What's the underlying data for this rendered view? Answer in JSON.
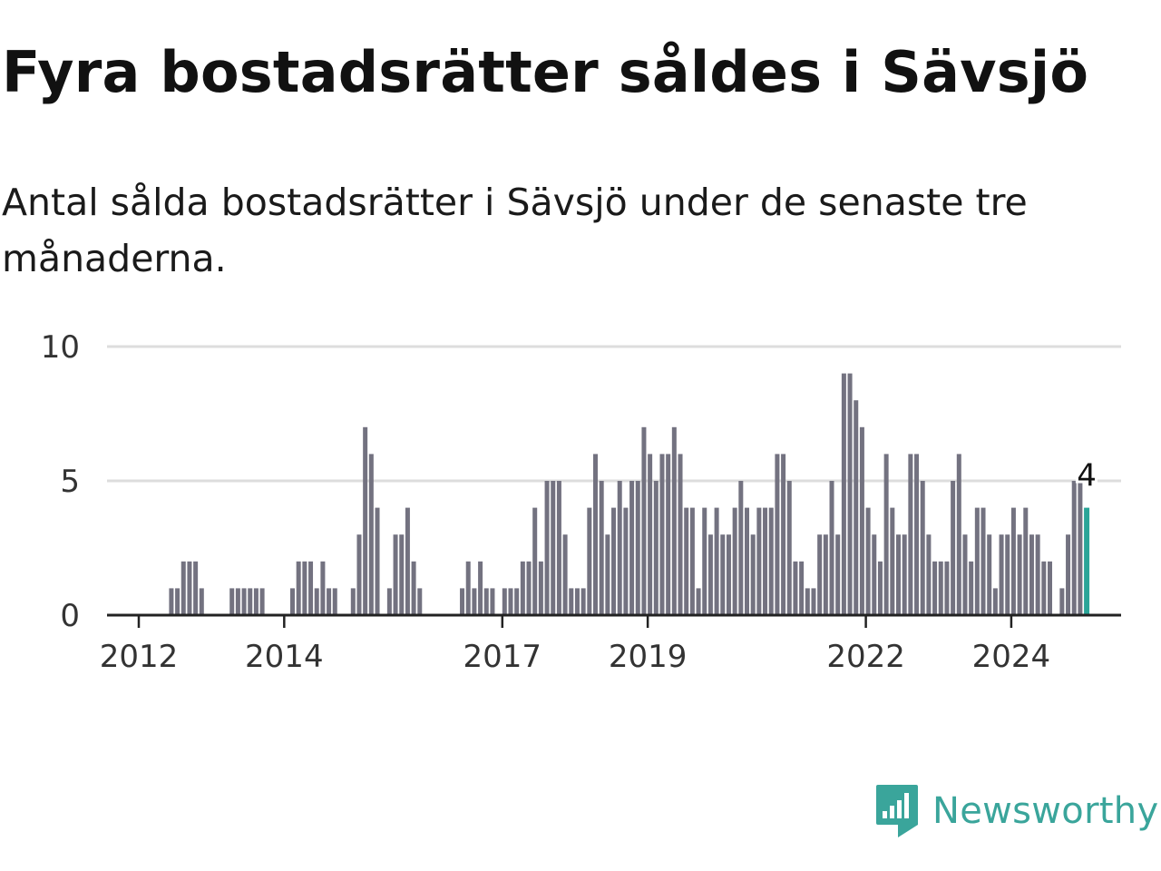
{
  "title": "Fyra bostadsrätter såldes i Sävsjö",
  "subtitle": "Antal sålda bostadsrätter i Sävsjö under de senaste tre månaderna.",
  "brand": {
    "name": "Newsworthy",
    "icon": "newsworthy-logo-icon",
    "color": "#3aa59b"
  },
  "chart_data": {
    "type": "bar",
    "start": "2012-06",
    "interval": "month",
    "values": [
      1,
      1,
      2,
      2,
      2,
      1,
      0,
      0,
      0,
      0,
      1,
      1,
      1,
      1,
      1,
      1,
      0,
      0,
      0,
      0,
      1,
      2,
      2,
      2,
      1,
      2,
      1,
      1,
      0,
      0,
      1,
      3,
      7,
      6,
      4,
      0,
      1,
      3,
      3,
      4,
      2,
      1,
      0,
      0,
      0,
      0,
      0,
      0,
      1,
      2,
      1,
      2,
      1,
      1,
      0,
      1,
      1,
      1,
      2,
      2,
      4,
      2,
      5,
      5,
      5,
      3,
      1,
      1,
      1,
      4,
      6,
      5,
      3,
      4,
      5,
      4,
      5,
      5,
      7,
      6,
      5,
      6,
      6,
      7,
      6,
      4,
      4,
      1,
      4,
      3,
      4,
      3,
      3,
      4,
      5,
      4,
      3,
      4,
      4,
      4,
      6,
      6,
      5,
      2,
      2,
      1,
      1,
      3,
      3,
      5,
      3,
      9,
      9,
      8,
      7,
      4,
      3,
      2,
      6,
      4,
      3,
      3,
      6,
      6,
      5,
      3,
      2,
      2,
      2,
      5,
      6,
      3,
      2,
      4,
      4,
      3,
      1,
      3,
      3,
      4,
      3,
      4,
      3,
      3,
      2,
      2,
      0,
      1,
      3,
      5,
      5,
      4
    ],
    "highlight_label": "4",
    "x_ticks": [
      "2012",
      "2014",
      "2017",
      "2019",
      "2022",
      "2024"
    ],
    "y_ticks": [
      "0",
      "5",
      "10"
    ],
    "ylim": [
      0,
      10
    ],
    "grid": true,
    "bar_color": "#737280",
    "highlight_color": "#2aa598"
  }
}
